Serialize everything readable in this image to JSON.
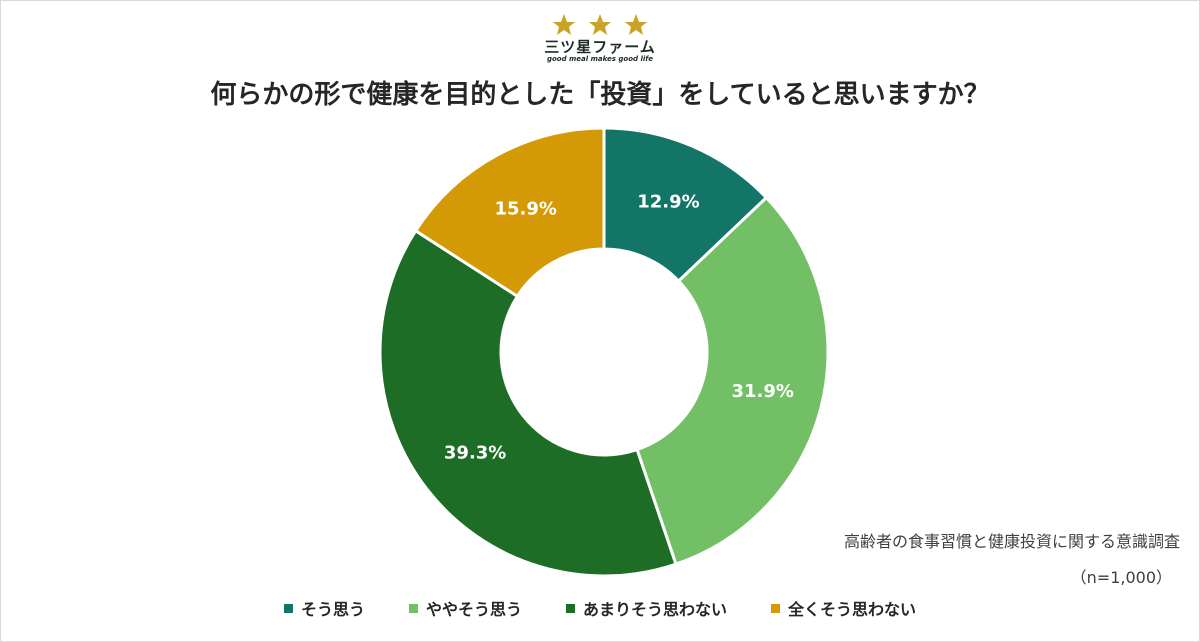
{
  "logo": {
    "name": "三ツ星ファーム",
    "tagline": "good meal makes good life",
    "star_color": "#c9a227"
  },
  "chart_data": {
    "type": "pie",
    "donut": true,
    "title": "何らかの形で健康を目的とした「投資」をしていると思いますか？",
    "categories": [
      "そう思う",
      "ややそう思う",
      "あまりそう思わない",
      "全くそう思わない"
    ],
    "values": [
      12.9,
      31.9,
      39.3,
      15.9
    ],
    "value_labels": [
      "12.9%",
      "31.9%",
      "39.3%",
      "15.9%"
    ],
    "colors": [
      "#137566",
      "#73bf66",
      "#1e6d27",
      "#d49a06"
    ],
    "legend_position": "bottom"
  },
  "notes": {
    "survey": "高齢者の食事習慣と健康投資に関する意識調査",
    "sample": "（n=1,000）"
  }
}
